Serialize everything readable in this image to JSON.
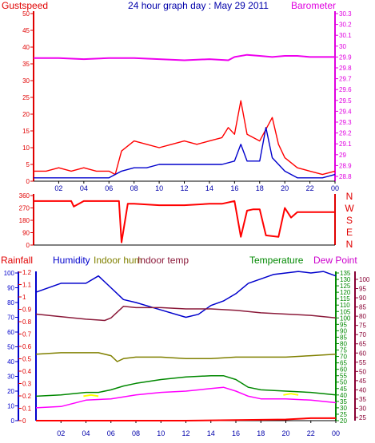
{
  "chart_data": [
    {
      "type": "line",
      "title": "24 hour graph day : May 29 2011",
      "x_ticks": [
        "02",
        "04",
        "06",
        "08",
        "10",
        "12",
        "14",
        "16",
        "18",
        "20",
        "22",
        "00"
      ],
      "left_axis": {
        "label": "Gustspeed",
        "ticks": [
          "0",
          "5",
          "10",
          "15",
          "20",
          "25",
          "30",
          "35",
          "40",
          "45",
          "50"
        ],
        "ylim": [
          0,
          50
        ],
        "color": "#e00000"
      },
      "right_axis": {
        "label": "Barometer",
        "ticks": [
          "28.8",
          "28.9",
          "29",
          "29.1",
          "29.2",
          "29.3",
          "29.4",
          "29.5",
          "29.6",
          "29.7",
          "29.8",
          "29.9",
          "30",
          "30.1",
          "30.2",
          "30.3"
        ],
        "ylim": [
          28.8,
          30.3
        ],
        "color": "#e000e0"
      },
      "series": [
        {
          "name": "Gustspeed",
          "color": "#ff0000",
          "axis": "left",
          "x": [
            0,
            1,
            2,
            3,
            4,
            5,
            6,
            6.5,
            7,
            8,
            9,
            10,
            11,
            12,
            13,
            14,
            15,
            15.5,
            16,
            16.5,
            17,
            18,
            19,
            19.5,
            20,
            21,
            22,
            23,
            24
          ],
          "values": [
            3,
            3,
            4,
            3,
            4,
            3,
            3,
            2,
            9,
            12,
            11,
            10,
            11,
            12,
            11,
            12,
            13,
            16,
            14,
            24,
            14,
            12,
            19,
            11,
            7,
            4,
            3,
            2,
            3
          ]
        },
        {
          "name": "Windspeed",
          "color": "#0000cc",
          "axis": "left",
          "x": [
            0,
            1,
            2,
            3,
            4,
            5,
            6,
            7,
            8,
            9,
            10,
            11,
            12,
            13,
            14,
            15,
            16,
            16.5,
            17,
            18,
            18.5,
            19,
            20,
            21,
            22,
            23,
            24
          ],
          "values": [
            1,
            1,
            1,
            1,
            1,
            1,
            1,
            3,
            4,
            4,
            5,
            5,
            5,
            5,
            5,
            5,
            6,
            11,
            6,
            6,
            16,
            7,
            3,
            1,
            1,
            1,
            2
          ]
        },
        {
          "name": "Barometer",
          "color": "#ee00ee",
          "axis": "right",
          "x": [
            0,
            2,
            4,
            6,
            8,
            10,
            12,
            14,
            15.5,
            16,
            17,
            18,
            19,
            20,
            21,
            22,
            23,
            24
          ],
          "values": [
            29.89,
            29.89,
            29.88,
            29.89,
            29.89,
            29.88,
            29.87,
            29.88,
            29.87,
            29.9,
            29.92,
            29.91,
            29.9,
            29.91,
            29.91,
            29.9,
            29.9,
            29.9
          ]
        }
      ]
    },
    {
      "type": "line",
      "left_axis": {
        "ticks": [
          "0",
          "90",
          "180",
          "270",
          "360"
        ],
        "ylim": [
          0,
          360
        ],
        "color": "#e00000"
      },
      "right_axis": {
        "ticks": [
          "N",
          "W",
          "S",
          "E",
          "N"
        ],
        "color": "#e00000"
      },
      "series": [
        {
          "name": "Wind direction",
          "color": "#ff0000",
          "axis": "left",
          "x": [
            0,
            3,
            3.2,
            4,
            4.5,
            6.8,
            7,
            7.5,
            8,
            10,
            12,
            14,
            15,
            16,
            16.5,
            17,
            17.5,
            18,
            18.5,
            19.5,
            20,
            20.5,
            21,
            22,
            24
          ],
          "values": [
            320,
            320,
            280,
            320,
            320,
            320,
            20,
            300,
            300,
            290,
            290,
            300,
            300,
            320,
            60,
            250,
            260,
            260,
            70,
            60,
            270,
            200,
            240,
            240,
            240
          ]
        }
      ]
    },
    {
      "type": "line",
      "x_ticks": [
        "02",
        "04",
        "06",
        "08",
        "10",
        "12",
        "14",
        "16",
        "18",
        "20",
        "22",
        "00"
      ],
      "legend": [
        "Rainfall",
        "Humidity",
        "Indoor hum",
        "Indoor temp",
        "Temperature",
        "Dew Point"
      ],
      "axes": {
        "rainfall": {
          "label": "Rainfall",
          "ticks": [
            "0",
            "0.1",
            "0.2",
            "0.3",
            "0.4",
            "0.5",
            "0.6",
            "0.7",
            "0.8",
            "0.9",
            "1",
            "1.1",
            "1.2"
          ],
          "ylim": [
            0,
            1.2
          ],
          "color": "#e00000"
        },
        "humidity": {
          "label": "Humidity",
          "ticks": [
            "0",
            "10",
            "20",
            "30",
            "40",
            "50",
            "60",
            "70",
            "80",
            "90",
            "100"
          ],
          "ylim": [
            0,
            100
          ],
          "color": "#0000cc"
        },
        "temperature": {
          "label": "Temperature",
          "ticks": [
            "20",
            "25",
            "30",
            "35",
            "40",
            "45",
            "50",
            "55",
            "60",
            "65",
            "70",
            "75",
            "80",
            "85",
            "90",
            "95",
            "100",
            "105",
            "110",
            "115",
            "120",
            "125",
            "130",
            "135"
          ],
          "ylim": [
            20,
            135
          ],
          "color": "#008800"
        },
        "dew_point": {
          "label": "Dew Point",
          "ticks": [
            "25",
            "30",
            "35",
            "40",
            "45",
            "50",
            "55",
            "60",
            "65",
            "70",
            "75",
            "80",
            "85",
            "90",
            "95",
            "100"
          ],
          "ylim": [
            25,
            100
          ],
          "color": "#880033"
        }
      },
      "series": [
        {
          "name": "Humidity",
          "color": "#0000cc",
          "axis": "humidity",
          "x": [
            0,
            2,
            4,
            5,
            6,
            7,
            8,
            10,
            12,
            13,
            14,
            15,
            16,
            17,
            18,
            19,
            20,
            21,
            22,
            23,
            24
          ],
          "values": [
            87,
            93,
            93,
            98,
            90,
            82,
            80,
            75,
            70,
            72,
            78,
            81,
            86,
            93,
            96,
            99,
            100,
            101,
            100,
            101,
            98
          ]
        },
        {
          "name": "Indoor hum",
          "color": "#808000",
          "axis": "humidity",
          "x": [
            0,
            2,
            4,
            5,
            6,
            6.5,
            7,
            8,
            10,
            12,
            14,
            16,
            18,
            20,
            22,
            24
          ],
          "values": [
            45,
            46,
            46,
            46,
            44,
            40,
            42,
            43,
            43,
            42,
            42,
            43,
            43,
            43,
            44,
            45
          ]
        },
        {
          "name": "Indoor temp",
          "color": "#8b1a3a",
          "axis": "temperature",
          "x": [
            0,
            2,
            4,
            5.5,
            6,
            7,
            8,
            10,
            12,
            14,
            16,
            18,
            20,
            22,
            24
          ],
          "values": [
            103,
            101,
            99,
            98,
            100,
            109,
            108,
            108,
            107,
            107,
            106,
            104,
            103,
            102,
            100
          ]
        },
        {
          "name": "Temperature",
          "color": "#008800",
          "axis": "temperature",
          "x": [
            0,
            2,
            4,
            5,
            6,
            7,
            8,
            10,
            12,
            14,
            15,
            16,
            17,
            18,
            20,
            22,
            24
          ],
          "values": [
            39,
            40,
            42,
            42,
            44,
            47,
            49,
            52,
            54,
            55,
            55,
            52,
            46,
            44,
            43,
            42,
            40
          ]
        },
        {
          "name": "Dew Point",
          "color": "#ff00ff",
          "axis": "temperature",
          "x": [
            0,
            2,
            4,
            6,
            8,
            10,
            12,
            14,
            15,
            16,
            17,
            18,
            20,
            22,
            24
          ],
          "values": [
            30,
            31,
            36,
            37,
            40,
            42,
            43,
            45,
            46,
            43,
            39,
            37,
            37,
            36,
            34
          ]
        },
        {
          "name": "Rainfall",
          "color": "#ff0000",
          "axis": "rainfall",
          "x": [
            0,
            12,
            20,
            22,
            23,
            24
          ],
          "values": [
            0,
            0,
            0.01,
            0.02,
            0.02,
            0.02
          ]
        },
        {
          "name": "Solar",
          "color": "#ffff00",
          "axis": "temperature",
          "x": [
            3.8,
            4.4,
            5,
            19.8,
            20.4,
            21
          ],
          "values": [
            39,
            40,
            39,
            40,
            41,
            40
          ]
        }
      ]
    }
  ]
}
